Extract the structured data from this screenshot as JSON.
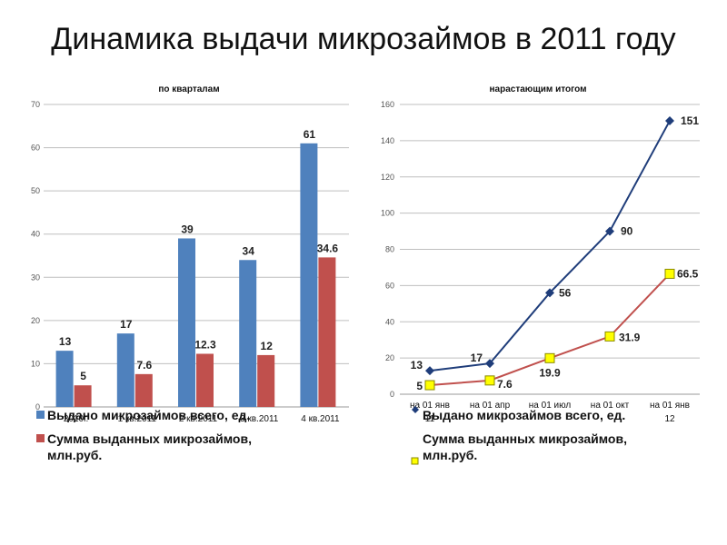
{
  "title": "Динамика выдачи микрозаймов в 2011 году",
  "chart_data": [
    {
      "type": "bar",
      "title": "по кварталам",
      "categories": [
        "2010г.",
        "1 кв.2011",
        "2 кв.2011",
        "3 кв.2011",
        "4 кв.2011"
      ],
      "series": [
        {
          "name": "Выдано микрозаймов всего, ед.",
          "values": [
            13,
            17,
            39,
            34,
            61
          ],
          "labels": [
            "13",
            "17",
            "39",
            "34",
            "61"
          ],
          "color": "#4F81BD"
        },
        {
          "name": "Сумма выданных микрозаймов, млн.руб.",
          "values": [
            5,
            7.6,
            12.3,
            12,
            34.6
          ],
          "labels": [
            "5",
            "7.6",
            "12.3",
            "12",
            "34.6"
          ],
          "color": "#C0504D"
        }
      ],
      "ylim": [
        0,
        70
      ],
      "yticks": [
        "0",
        "10",
        "20",
        "30",
        "40",
        "50",
        "60",
        "70"
      ],
      "grid": true,
      "legend": "bottom"
    },
    {
      "type": "line",
      "title": "нарастающим итогом",
      "categories": [
        "на 01 янв 11",
        "на 01 апр",
        "на 01 июл",
        "на 01 окт",
        "на 01 янв 12"
      ],
      "series": [
        {
          "name": "Выдано микрозаймов всего, ед.",
          "values": [
            13,
            17,
            56,
            90,
            151
          ],
          "labels": [
            "13",
            "17",
            "56",
            "90",
            "151"
          ],
          "color": "#1F3D7A",
          "marker": "diamond"
        },
        {
          "name": "Сумма выданных микрозаймов, млн.руб.",
          "values": [
            5,
            7.6,
            19.9,
            31.9,
            66.5
          ],
          "labels": [
            "5",
            "7.6",
            "19.9",
            "31.9",
            "66.5"
          ],
          "color": "#C0504D",
          "marker": "square",
          "marker_fill": "#FFFF00"
        }
      ],
      "ylim": [
        0,
        160
      ],
      "yticks": [
        "0",
        "20",
        "40",
        "60",
        "80",
        "100",
        "120",
        "140",
        "160"
      ],
      "grid": true,
      "legend": "bottom"
    }
  ]
}
